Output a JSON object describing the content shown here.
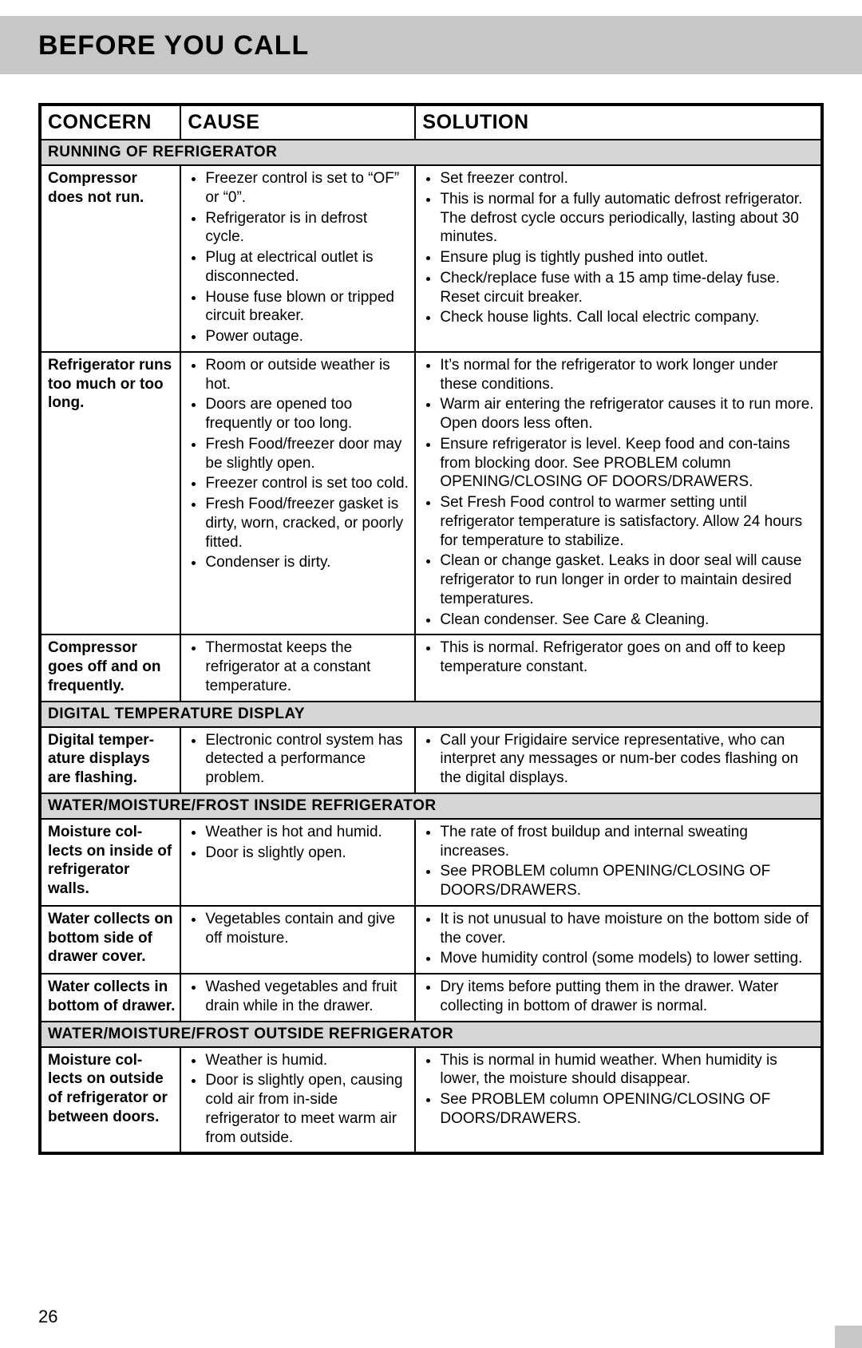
{
  "colors": {
    "page_bg": "#ffffff",
    "header_bg": "#c7c7c7",
    "section_bg": "#d6d6d6",
    "border": "#000000",
    "text": "#000000"
  },
  "typography": {
    "title_fontsize_pt": 26,
    "header_fontsize_pt": 19,
    "body_fontsize_pt": 14
  },
  "title": "BEFORE YOU CALL",
  "page_number": "26",
  "table": {
    "headers": {
      "concern": "CONCERN",
      "cause": "CAUSE",
      "solution": "SOLUTION"
    },
    "column_widths_pct": [
      18,
      30,
      52
    ],
    "sections": [
      {
        "title": "RUNNING OF REFRIGERATOR",
        "rows": [
          {
            "concern": "Compressor does not run.",
            "causes": [
              "Freezer control is set to “OF” or “0”.",
              "Refrigerator is in defrost cycle.",
              "Plug at electrical outlet is disconnected.",
              "House fuse blown or tripped circuit breaker.",
              "Power outage."
            ],
            "solutions": [
              "Set freezer control.",
              "This is normal for a fully automatic defrost refrigerator. The defrost cycle occurs periodically, lasting about 30 minutes.",
              "Ensure plug is tightly pushed into outlet.",
              "Check/replace fuse with a 15 amp time-delay fuse. Reset circuit breaker.",
              "Check house lights. Call local electric company."
            ]
          },
          {
            "concern": "Refrigerator runs too much or too long.",
            "causes": [
              "Room or outside weather is hot.",
              "Doors are opened too frequently or too long.",
              "Fresh Food/freezer door may be slightly open.",
              "Freezer control is set too cold.",
              "Fresh Food/freezer gasket is dirty, worn, cracked, or poorly fitted.",
              "Condenser is dirty."
            ],
            "solutions": [
              "It’s normal for the refrigerator to work longer under these conditions.",
              "Warm air entering the refrigerator causes it to run more. Open doors less often.",
              "Ensure refrigerator is level. Keep food and con-tains from blocking door. See PROBLEM column OPENING/CLOSING OF DOORS/DRAWERS.",
              "Set Fresh Food control to warmer setting until refrigerator temperature is satisfactory. Allow 24 hours for temperature to stabilize.",
              "Clean or change gasket. Leaks in door seal will cause refrigerator to run longer in order to maintain desired temperatures.",
              "Clean condenser. See Care & Cleaning."
            ]
          },
          {
            "concern": "Compressor goes off and on frequently.",
            "causes": [
              "Thermostat keeps the refrigerator at a constant temperature."
            ],
            "solutions": [
              "This is normal. Refrigerator goes on and off to keep temperature constant."
            ]
          }
        ]
      },
      {
        "title": "DIGITAL TEMPERATURE DISPLAY",
        "rows": [
          {
            "concern": "Digital temper-ature displays are flashing.",
            "causes": [
              "Electronic control system has detected a performance problem."
            ],
            "solutions": [
              "Call your Frigidaire service representative, who can interpret any messages or num-ber codes flashing on the digital displays."
            ]
          }
        ]
      },
      {
        "title": "WATER/MOISTURE/FROST INSIDE REFRIGERATOR",
        "rows": [
          {
            "concern": "Moisture col-lects on inside of refrigerator walls.",
            "causes": [
              "Weather is hot and humid.",
              "Door is slightly open."
            ],
            "solutions": [
              "The rate of frost buildup and internal sweating increases.",
              "See PROBLEM column OPENING/CLOSING OF DOORS/DRAWERS."
            ]
          },
          {
            "concern": "Water collects on bottom side of drawer cover.",
            "causes": [
              "Vegetables contain and give off moisture."
            ],
            "solutions": [
              "It is not unusual to have moisture on the bottom side of the cover.",
              "Move humidity control (some models) to lower setting."
            ]
          },
          {
            "concern": "Water collects in bottom of drawer.",
            "causes": [
              "Washed vegetables and fruit drain while in the drawer."
            ],
            "solutions": [
              "Dry items before putting them in the drawer. Water collecting in bottom of drawer is normal."
            ]
          }
        ]
      },
      {
        "title": "WATER/MOISTURE/FROST OUTSIDE REFRIGERATOR",
        "rows": [
          {
            "concern": "Moisture col-lects on outside of refrigerator or between doors.",
            "causes": [
              "Weather is humid.",
              "Door is slightly open, causing cold air from in-side refrigerator to meet warm air from outside."
            ],
            "solutions": [
              "This is normal in humid weather. When humidity is lower, the moisture should disappear.",
              "See PROBLEM column OPENING/CLOSING OF DOORS/DRAWERS."
            ]
          }
        ]
      }
    ]
  }
}
